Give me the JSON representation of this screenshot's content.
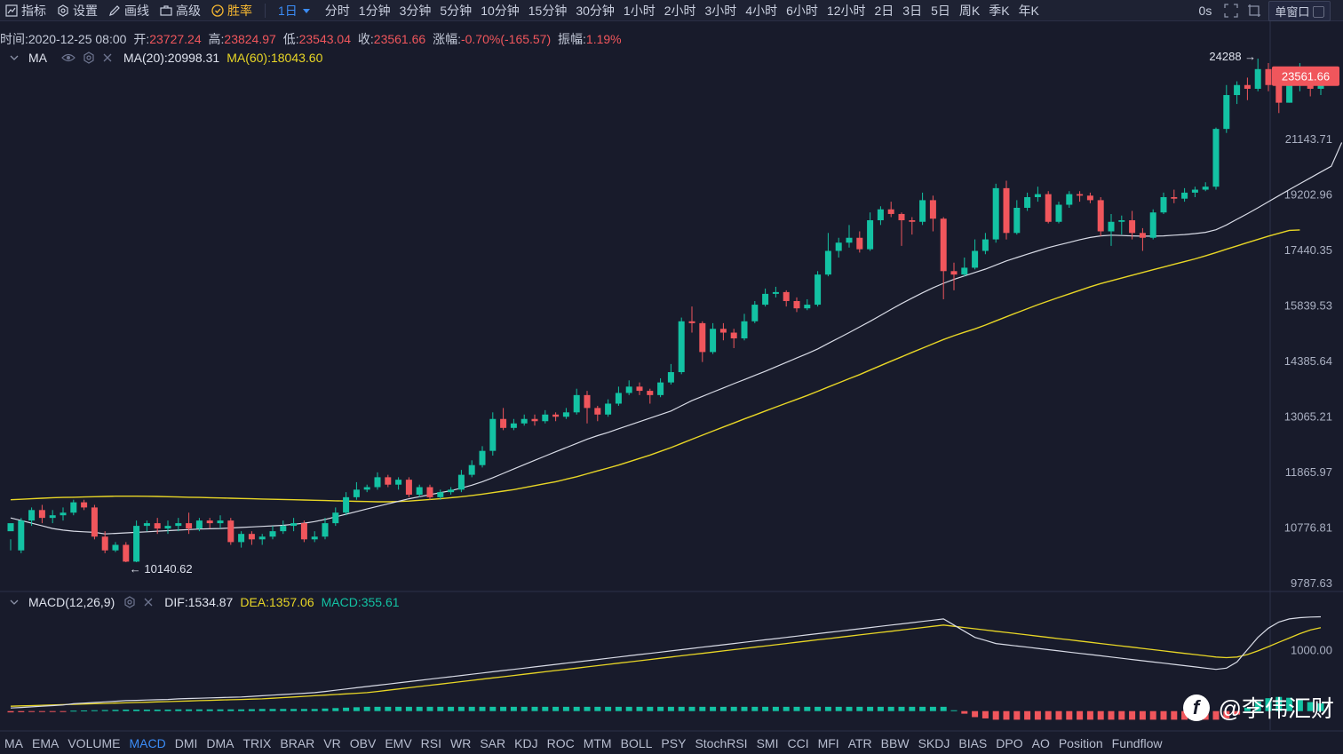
{
  "toolbar": {
    "indicators_label": "指标",
    "settings_label": "设置",
    "draw_label": "画线",
    "advanced_label": "高级",
    "winrate_label": "胜率",
    "timeframe_label": "1日",
    "periods": [
      "分时",
      "1分钟",
      "3分钟",
      "5分钟",
      "10分钟",
      "15分钟",
      "30分钟",
      "1小时",
      "2小时",
      "3小时",
      "4小时",
      "6小时",
      "12小时",
      "2日",
      "3日",
      "5日",
      "周K",
      "季K",
      "年K"
    ],
    "timer_label": "0s",
    "window_label": "单窗口"
  },
  "ohlc": {
    "time_label": "时间:",
    "time": "2020-12-25 08:00",
    "open_label": "开:",
    "open": "23727.24",
    "high_label": "高:",
    "high": "23824.97",
    "low_label": "低:",
    "low": "23543.04",
    "close_label": "收:",
    "close": "23561.66",
    "change_label": "涨幅:",
    "change": "-0.70%(-165.57)",
    "amplitude_label": "振幅:",
    "amplitude": "1.19%"
  },
  "ma_legend": {
    "name": "MA",
    "ma20_label": "MA(20):20998.31",
    "ma60_label": "MA(60):18043.60"
  },
  "macd_legend": {
    "name": "MACD(12,26,9)",
    "dif_label": "DIF:1534.87",
    "dea_label": "DEA:1357.06",
    "macd_label": "MACD:355.61"
  },
  "indicators": [
    "MA",
    "EMA",
    "VOLUME",
    "MACD",
    "DMI",
    "DMA",
    "TRIX",
    "BRAR",
    "VR",
    "OBV",
    "EMV",
    "RSI",
    "WR",
    "SAR",
    "KDJ",
    "ROC",
    "MTM",
    "BOLL",
    "PSY",
    "StochRSI",
    "SMI",
    "CCI",
    "MFI",
    "ATR",
    "BBW",
    "SKDJ",
    "BIAS",
    "DPO",
    "AO",
    "Position",
    "Fundflow"
  ],
  "active_indicator": "MACD",
  "watermark": "@李伟汇财",
  "colors": {
    "up": "#13c2a3",
    "down": "#f0565c",
    "ma20": "#d8dbe6",
    "ma60": "#e8d626",
    "background": "#181b2b",
    "accent": "#3b8cf6"
  },
  "chart_data": {
    "type": "candlestick",
    "price_axis_ticks": [
      "24288",
      "23561.66",
      "21143.71",
      "19202.96",
      "17440.35",
      "15839.53",
      "14385.64",
      "13065.21",
      "11865.97",
      "10776.81",
      "9787.63"
    ],
    "price_axis_scale": "log",
    "current_price_label": "23561.66",
    "max_marker": "24288",
    "min_marker": "10140.62",
    "candles": [
      [
        10700,
        10850,
        10550,
        10350
      ],
      [
        10350,
        10900,
        10950,
        10300
      ],
      [
        10900,
        11100,
        11150,
        10800
      ],
      [
        11100,
        10950,
        11200,
        10850
      ],
      [
        10950,
        11000,
        11100,
        10850
      ],
      [
        11000,
        11050,
        11150,
        10900
      ],
      [
        11050,
        11250,
        11300,
        11000
      ],
      [
        11250,
        11150,
        11300,
        11100
      ],
      [
        11150,
        10600,
        11200,
        10550
      ],
      [
        10600,
        10350,
        10700,
        10300
      ],
      [
        10350,
        10450,
        10500,
        10320
      ],
      [
        10450,
        10150,
        10500,
        10140
      ],
      [
        10150,
        10800,
        10900,
        10140
      ],
      [
        10800,
        10850,
        10900,
        10700
      ],
      [
        10850,
        10750,
        10950,
        10650
      ],
      [
        10750,
        10800,
        10900,
        10650
      ],
      [
        10800,
        10850,
        10950,
        10700
      ],
      [
        10850,
        10750,
        11050,
        10650
      ],
      [
        10750,
        10900,
        10950,
        10700
      ],
      [
        10900,
        10850,
        10950,
        10750
      ],
      [
        10850,
        10900,
        11000,
        10750
      ],
      [
        10900,
        10500,
        10950,
        10450
      ],
      [
        10500,
        10650,
        10700,
        10400
      ],
      [
        10650,
        10550,
        10700,
        10450
      ],
      [
        10550,
        10600,
        10650,
        10450
      ],
      [
        10600,
        10700,
        10800,
        10550
      ],
      [
        10700,
        10800,
        10900,
        10650
      ],
      [
        10800,
        10850,
        10950,
        10700
      ],
      [
        10850,
        10550,
        10900,
        10500
      ],
      [
        10550,
        10600,
        10700,
        10500
      ],
      [
        10600,
        10850,
        10950,
        10550
      ],
      [
        10850,
        11050,
        11150,
        10800
      ],
      [
        11050,
        11350,
        11450,
        11000
      ],
      [
        11350,
        11500,
        11650,
        11300
      ],
      [
        11500,
        11550,
        11600,
        11450
      ],
      [
        11550,
        11750,
        11850,
        11500
      ],
      [
        11750,
        11600,
        11800,
        11550
      ],
      [
        11600,
        11700,
        11750,
        11500
      ],
      [
        11700,
        11400,
        11750,
        11350
      ],
      [
        11400,
        11550,
        11600,
        11350
      ],
      [
        11550,
        11350,
        11600,
        11300
      ],
      [
        11350,
        11450,
        11500,
        11300
      ],
      [
        11450,
        11500,
        11550,
        11400
      ],
      [
        11500,
        11800,
        11900,
        11450
      ],
      [
        11800,
        12000,
        12100,
        11750
      ],
      [
        12000,
        12300,
        12400,
        11950
      ],
      [
        12300,
        13000,
        13150,
        12200
      ],
      [
        13000,
        12800,
        13250,
        12750
      ],
      [
        12800,
        12900,
        13000,
        12750
      ],
      [
        12900,
        13000,
        13100,
        12850
      ],
      [
        13000,
        12950,
        13100,
        12850
      ],
      [
        12950,
        13100,
        13200,
        12900
      ],
      [
        13100,
        13050,
        13150,
        12950
      ],
      [
        13050,
        13150,
        13250,
        13000
      ],
      [
        13150,
        13550,
        13700,
        13100
      ],
      [
        13550,
        13250,
        13650,
        12900
      ],
      [
        13250,
        13100,
        13300,
        12950
      ],
      [
        13100,
        13350,
        13450,
        13050
      ],
      [
        13350,
        13600,
        13750,
        13300
      ],
      [
        13600,
        13750,
        13900,
        13550
      ],
      [
        13750,
        13650,
        13850,
        13550
      ],
      [
        13650,
        13550,
        13700,
        13350
      ],
      [
        13550,
        13850,
        13950,
        13500
      ],
      [
        13850,
        14100,
        14300,
        13800
      ],
      [
        14100,
        15400,
        15500,
        14050
      ],
      [
        15400,
        15350,
        15800,
        15100
      ],
      [
        15350,
        14600,
        15400,
        14350
      ],
      [
        14600,
        15200,
        15350,
        14550
      ],
      [
        15200,
        15100,
        15350,
        14900
      ],
      [
        15100,
        14950,
        15200,
        14700
      ],
      [
        14950,
        15400,
        15600,
        14900
      ],
      [
        15400,
        15850,
        15950,
        15350
      ],
      [
        15850,
        16150,
        16300,
        15800
      ],
      [
        16150,
        16200,
        16350,
        16050
      ],
      [
        16200,
        15950,
        16250,
        15800
      ],
      [
        15950,
        15750,
        16050,
        15650
      ],
      [
        15750,
        15850,
        16000,
        15700
      ],
      [
        15850,
        16700,
        16800,
        15800
      ],
      [
        16700,
        17400,
        17950,
        16650
      ],
      [
        17400,
        17650,
        17800,
        17200
      ],
      [
        17650,
        17800,
        18200,
        17500
      ],
      [
        17800,
        17450,
        18000,
        17350
      ],
      [
        17450,
        18350,
        18600,
        17400
      ],
      [
        18350,
        18700,
        18800,
        18200
      ],
      [
        18700,
        18550,
        18950,
        18450
      ],
      [
        18550,
        18350,
        18600,
        17550
      ],
      [
        18350,
        18300,
        18450,
        17900
      ],
      [
        18300,
        19000,
        19250,
        18200
      ],
      [
        19000,
        18400,
        19150,
        18000
      ],
      [
        18400,
        16800,
        18450,
        16000
      ],
      [
        16800,
        16700,
        17050,
        16250
      ],
      [
        16700,
        16900,
        17200,
        16650
      ],
      [
        16900,
        17400,
        17750,
        16850
      ],
      [
        17400,
        17750,
        17950,
        17300
      ],
      [
        17750,
        19400,
        19550,
        17650
      ],
      [
        19400,
        17950,
        19650,
        17750
      ],
      [
        17950,
        18750,
        19000,
        17900
      ],
      [
        18750,
        19100,
        19250,
        18650
      ],
      [
        19100,
        19200,
        19450,
        18950
      ],
      [
        19200,
        18300,
        19300,
        18250
      ],
      [
        18300,
        18850,
        18950,
        18250
      ],
      [
        18850,
        19200,
        19300,
        18750
      ],
      [
        19200,
        19150,
        19300,
        18950
      ],
      [
        19150,
        19000,
        19250,
        18900
      ],
      [
        19000,
        18000,
        19100,
        17850
      ],
      [
        18000,
        18300,
        18550,
        17550
      ],
      [
        18300,
        18350,
        18500,
        17900
      ],
      [
        18350,
        17950,
        18650,
        17750
      ],
      [
        17950,
        17800,
        18100,
        17400
      ],
      [
        17800,
        18600,
        18700,
        17750
      ],
      [
        18600,
        19100,
        19250,
        18550
      ],
      [
        19100,
        19050,
        19350,
        18900
      ],
      [
        19050,
        19250,
        19400,
        18950
      ],
      [
        19250,
        19350,
        19450,
        19100
      ],
      [
        19350,
        19450,
        19600,
        19300
      ],
      [
        19450,
        21500,
        21550,
        19350
      ],
      [
        21500,
        22800,
        23200,
        21350
      ],
      [
        22800,
        23200,
        23350,
        22450
      ],
      [
        23200,
        23050,
        23500,
        22600
      ],
      [
        23050,
        23850,
        24288,
        22950
      ],
      [
        23850,
        23200,
        24100,
        22950
      ],
      [
        23200,
        22500,
        23800,
        22100
      ],
      [
        22500,
        23400,
        23850,
        22500
      ],
      [
        23400,
        23750,
        24100,
        22950
      ],
      [
        23750,
        23050,
        23900,
        22750
      ],
      [
        23050,
        23700,
        23850,
        22800
      ],
      [
        23727.24,
        23561.66,
        23824.97,
        23543.04
      ]
    ],
    "ma20": [
      10950,
      10900,
      10850,
      10800,
      10750,
      10720,
      10700,
      10690,
      10680,
      10650,
      10660,
      10670,
      10680,
      10690,
      10700,
      10710,
      10720,
      10730,
      10740,
      10745,
      10750,
      10760,
      10770,
      10780,
      10790,
      10800,
      10810,
      10830,
      10850,
      10880,
      10920,
      10970,
      11020,
      11070,
      11120,
      11170,
      11220,
      11270,
      11320,
      11360,
      11400,
      11440,
      11480,
      11530,
      11590,
      11660,
      11740,
      11830,
      11920,
      12010,
      12100,
      12190,
      12280,
      12370,
      12460,
      12550,
      12630,
      12700,
      12780,
      12860,
      12940,
      13020,
      13100,
      13180,
      13300,
      13420,
      13520,
      13620,
      13720,
      13820,
      13920,
      14020,
      14120,
      14230,
      14340,
      14450,
      14560,
      14680,
      14820,
      14960,
      15100,
      15250,
      15400,
      15560,
      15720,
      15880,
      16030,
      16180,
      16320,
      16450,
      16560,
      16660,
      16760,
      16860,
      16980,
      17100,
      17200,
      17300,
      17400,
      17500,
      17580,
      17660,
      17740,
      17810,
      17860,
      17880,
      17870,
      17860,
      17850,
      17850,
      17860,
      17880,
      17900,
      17930,
      17970,
      18050,
      18200,
      18380,
      18560,
      18750,
      18950,
      19150,
      19350,
      19550,
      19750,
      19950,
      20150,
      20998.31
    ],
    "ma60": [
      11300,
      11310,
      11320,
      11330,
      11340,
      11345,
      11350,
      11355,
      11360,
      11365,
      11370,
      11370,
      11370,
      11368,
      11365,
      11360,
      11355,
      11350,
      11345,
      11340,
      11335,
      11330,
      11325,
      11320,
      11315,
      11310,
      11305,
      11300,
      11295,
      11290,
      11285,
      11280,
      11275,
      11270,
      11265,
      11260,
      11260,
      11265,
      11275,
      11290,
      11305,
      11320,
      11340,
      11360,
      11385,
      11410,
      11440,
      11470,
      11500,
      11540,
      11580,
      11620,
      11660,
      11710,
      11760,
      11820,
      11880,
      11940,
      12000,
      12070,
      12140,
      12210,
      12290,
      12370,
      12460,
      12550,
      12640,
      12730,
      12820,
      12910,
      13000,
      13090,
      13180,
      13270,
      13360,
      13450,
      13540,
      13640,
      13740,
      13840,
      13940,
      14040,
      14150,
      14260,
      14370,
      14480,
      14590,
      14700,
      14810,
      14920,
      15020,
      15110,
      15200,
      15300,
      15410,
      15520,
      15630,
      15740,
      15850,
      15950,
      16050,
      16150,
      16250,
      16350,
      16440,
      16520,
      16600,
      16680,
      16760,
      16840,
      16920,
      17000,
      17080,
      17160,
      17250,
      17350,
      17450,
      17550,
      17650,
      17750,
      17850,
      17940,
      18030,
      18043.6
    ],
    "macd": {
      "axis_tick": "1000.00",
      "dif": [
        50,
        60,
        70,
        80,
        90,
        100,
        120,
        130,
        140,
        150,
        160,
        170,
        175,
        180,
        185,
        190,
        200,
        205,
        210,
        215,
        220,
        225,
        230,
        240,
        250,
        260,
        270,
        280,
        290,
        300,
        320,
        340,
        360,
        380,
        400,
        420,
        440,
        460,
        480,
        500,
        520,
        540,
        560,
        580,
        600,
        620,
        640,
        660,
        680,
        700,
        720,
        740,
        760,
        780,
        800,
        820,
        840,
        860,
        880,
        900,
        920,
        940,
        960,
        980,
        1000,
        1020,
        1040,
        1060,
        1080,
        1100,
        1120,
        1140,
        1160,
        1180,
        1200,
        1220,
        1240,
        1260,
        1280,
        1300,
        1320,
        1340,
        1360,
        1380,
        1400,
        1420,
        1440,
        1460,
        1480,
        1500,
        1400,
        1300,
        1200,
        1150,
        1100,
        1080,
        1060,
        1040,
        1020,
        1000,
        980,
        960,
        940,
        920,
        900,
        880,
        860,
        840,
        820,
        800,
        780,
        760,
        740,
        720,
        700,
        680,
        700,
        800,
        1000,
        1200,
        1350,
        1450,
        1500,
        1520,
        1530,
        1534.87
      ],
      "dea": [
        80,
        85,
        90,
        95,
        100,
        105,
        110,
        115,
        120,
        125,
        130,
        135,
        140,
        145,
        150,
        155,
        160,
        165,
        170,
        175,
        180,
        185,
        190,
        195,
        200,
        210,
        220,
        230,
        240,
        250,
        260,
        270,
        280,
        290,
        300,
        320,
        340,
        360,
        380,
        400,
        420,
        440,
        460,
        480,
        500,
        520,
        540,
        560,
        580,
        600,
        620,
        640,
        660,
        680,
        700,
        720,
        740,
        760,
        780,
        800,
        820,
        840,
        860,
        880,
        900,
        920,
        940,
        960,
        980,
        1000,
        1020,
        1040,
        1060,
        1080,
        1100,
        1120,
        1140,
        1160,
        1180,
        1200,
        1220,
        1240,
        1260,
        1280,
        1300,
        1320,
        1340,
        1360,
        1380,
        1400,
        1380,
        1360,
        1340,
        1320,
        1300,
        1280,
        1260,
        1240,
        1220,
        1200,
        1180,
        1160,
        1140,
        1120,
        1100,
        1080,
        1060,
        1040,
        1020,
        1000,
        980,
        960,
        940,
        920,
        900,
        880,
        870,
        880,
        920,
        980,
        1050,
        1120,
        1190,
        1260,
        1320,
        1357.06
      ]
    }
  }
}
